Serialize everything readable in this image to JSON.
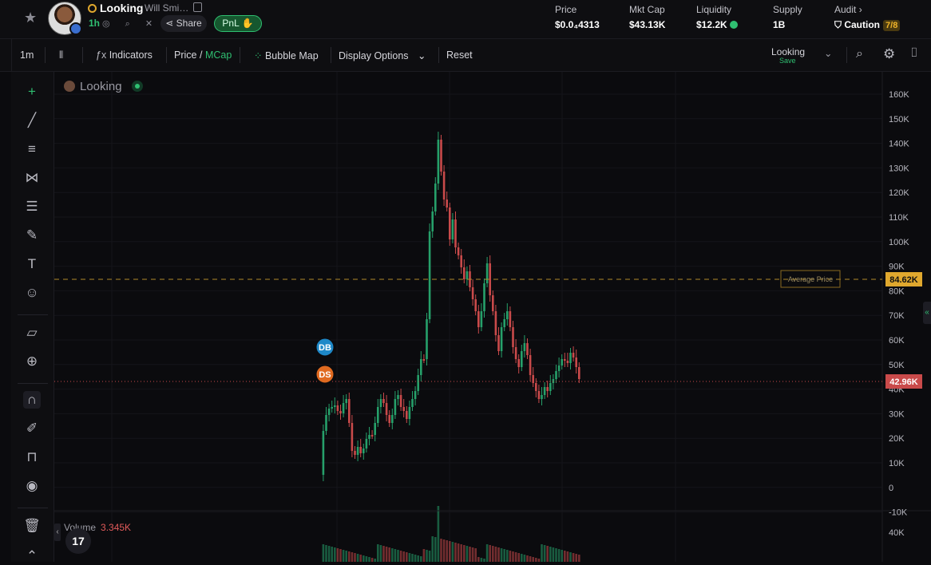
{
  "header": {
    "token_ticker": "Looking",
    "token_name": "Will Smi…",
    "age": "1h",
    "share_label": "Share",
    "pnl_label": "PnL",
    "stats": [
      {
        "label": "Price",
        "value": "$0.0₄4313"
      },
      {
        "label": "Mkt Cap",
        "value": "$43.13K"
      },
      {
        "label": "Liquidity",
        "value": "$12.2K"
      },
      {
        "label": "Supply",
        "value": "1B"
      },
      {
        "label": "Audit",
        "value": "Caution",
        "badge": "7/8"
      }
    ]
  },
  "toolbar": {
    "interval": "1m",
    "indicators_label": "Indicators",
    "price_label": "Price",
    "slash": "/",
    "mcap_label": "MCap",
    "bubble_map_label": "Bubble Map",
    "display_options_label": "Display Options",
    "reset_label": "Reset",
    "layout_name": "Looking",
    "save_label": "Save"
  },
  "chart": {
    "legend_title": "Looking",
    "volume_label": "Volume",
    "volume_value": "3.345K",
    "price_axis_labels": [
      "160K",
      "150K",
      "140K",
      "130K",
      "120K",
      "110K",
      "100K",
      "90K",
      "80K",
      "70K",
      "60K",
      "50K",
      "40K",
      "30K",
      "20K",
      "10K",
      "0",
      "-10K"
    ],
    "volume_axis_label": "40K",
    "average_price_label": "Average Price",
    "average_price_value": "84.62K",
    "current_value": "42.96K",
    "marker_db": "DB",
    "marker_ds": "DS",
    "tv_logo": "17"
  },
  "colors": {
    "up": "#26a06a",
    "down": "#c94a4a",
    "accent": "#2fbf71",
    "caution": "#f0b429"
  }
}
